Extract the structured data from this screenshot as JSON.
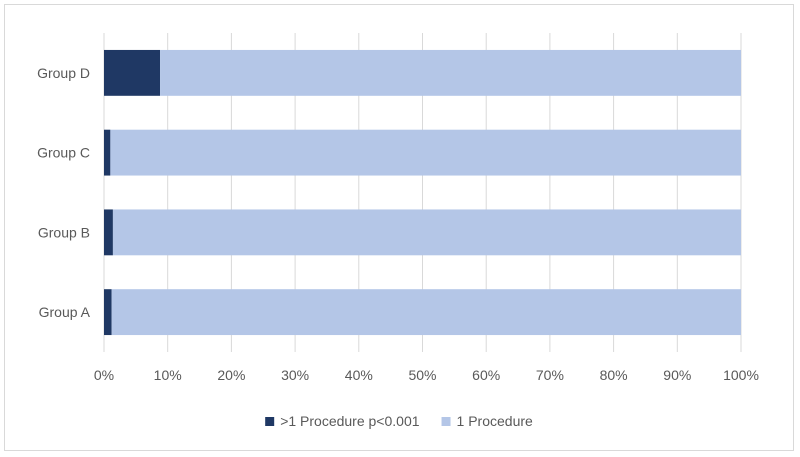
{
  "chart_data": {
    "type": "bar",
    "orientation": "horizontal",
    "stacked": true,
    "percent": true,
    "title": "",
    "xlabel": "",
    "ylabel": "",
    "categories": [
      "Group A",
      "Group B",
      "Group C",
      "Group D"
    ],
    "series": [
      {
        "name": ">1 Procedure p<0.001",
        "values": [
          1.2,
          1.4,
          1.0,
          8.8
        ],
        "color": "#1f3864"
      },
      {
        "name": "1 Procedure",
        "values": [
          98.8,
          98.6,
          99.0,
          91.2
        ],
        "color": "#b4c6e7"
      }
    ],
    "xlim": [
      0,
      100
    ],
    "xticks": [
      "0%",
      "10%",
      "20%",
      "30%",
      "40%",
      "50%",
      "60%",
      "70%",
      "80%",
      "90%",
      "100%"
    ],
    "grid": true,
    "legend_position": "bottom"
  }
}
